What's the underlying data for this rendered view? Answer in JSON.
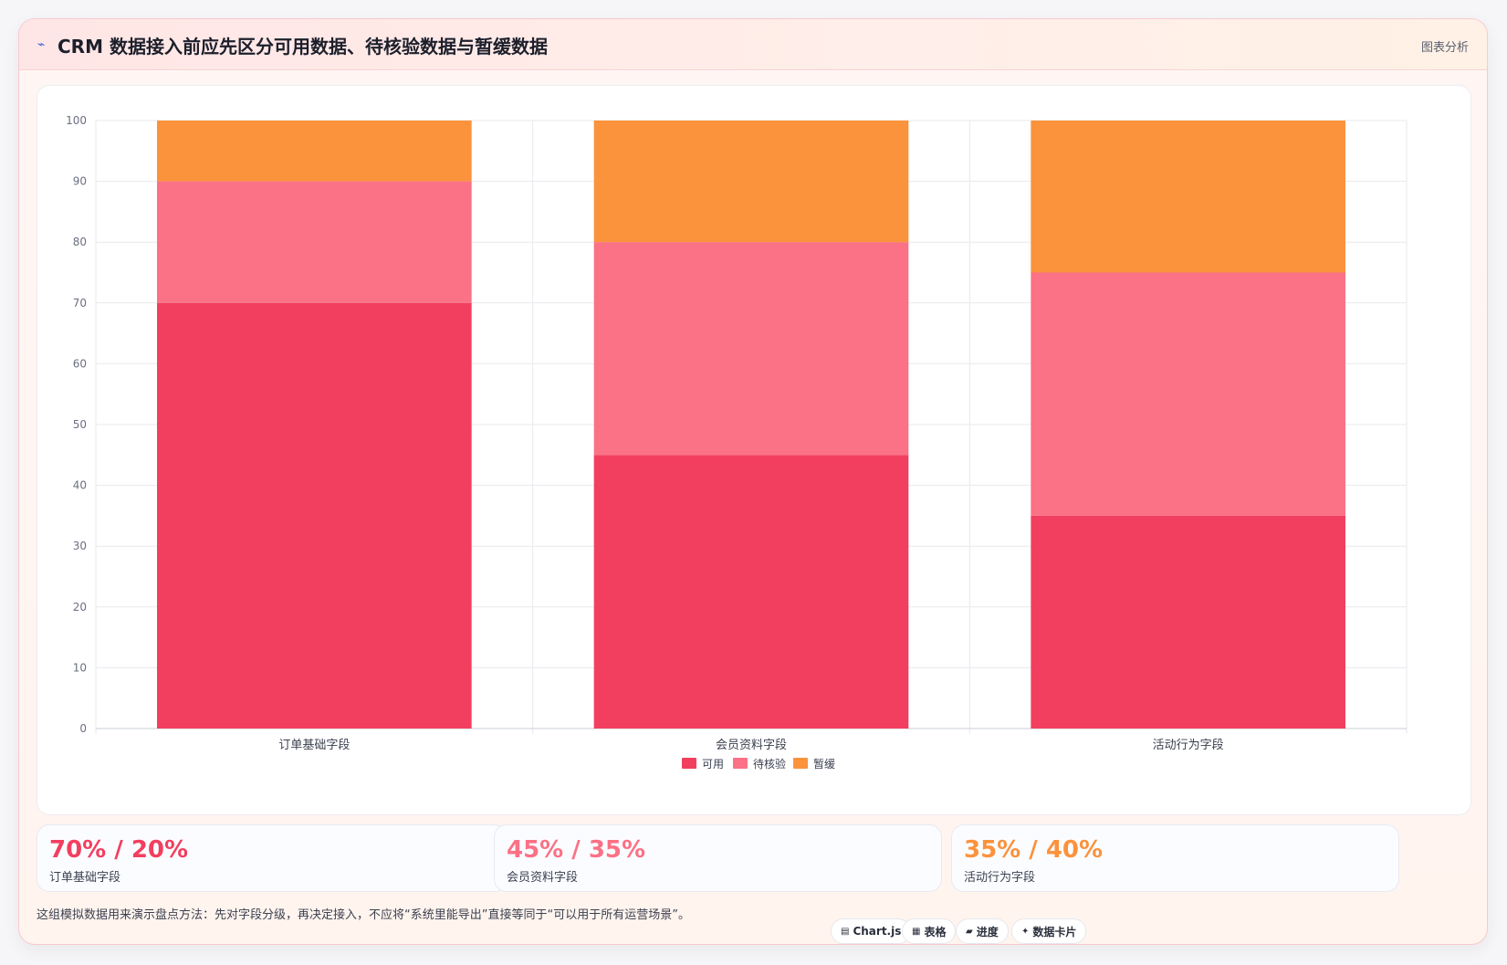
{
  "header": {
    "icon": "chart-line-icon",
    "title": "CRM 数据接入前应先区分可用数据、待核验数据与暂缓数据",
    "tag": "图表分析"
  },
  "colors": {
    "available": "#f23f5f",
    "pending": "#fb7185",
    "deferred": "#fb923c"
  },
  "chart_data": {
    "type": "bar",
    "stacked": true,
    "categories": [
      "订单基础字段",
      "会员资料字段",
      "活动行为字段"
    ],
    "series": [
      {
        "name": "可用",
        "values": [
          70,
          45,
          35
        ],
        "color": "#f23f5f"
      },
      {
        "name": "待核验",
        "values": [
          20,
          35,
          40
        ],
        "color": "#fb7185"
      },
      {
        "name": "暂缓",
        "values": [
          10,
          20,
          25
        ],
        "color": "#fb923c"
      }
    ],
    "ylim": [
      0,
      100
    ],
    "yticks": [
      0,
      10,
      20,
      30,
      40,
      50,
      60,
      70,
      80,
      90,
      100
    ],
    "grid": true,
    "legend": "bottom"
  },
  "stats": [
    {
      "value": "70% / 20%",
      "label": "订单基础字段",
      "color": "#f23f5f"
    },
    {
      "value": "45% / 35%",
      "label": "会员资料字段",
      "color": "#fb7185"
    },
    {
      "value": "35% / 40%",
      "label": "活动行为字段",
      "color": "#fb923c"
    }
  ],
  "footer": {
    "note": "这组模拟数据用来演示盘点方法：先对字段分级，再决定接入，不应将“系统里能导出”直接等同于“可以用于所有运营场景”。",
    "chips": [
      {
        "icon": "chart-icon",
        "glyph": "▤",
        "label": "Chart.js"
      },
      {
        "icon": "table-icon",
        "glyph": "▦",
        "label": "表格"
      },
      {
        "icon": "progress-icon",
        "glyph": "▰",
        "label": "进度"
      },
      {
        "icon": "sparkle-icon",
        "glyph": "✦",
        "label": "数据卡片"
      }
    ]
  }
}
